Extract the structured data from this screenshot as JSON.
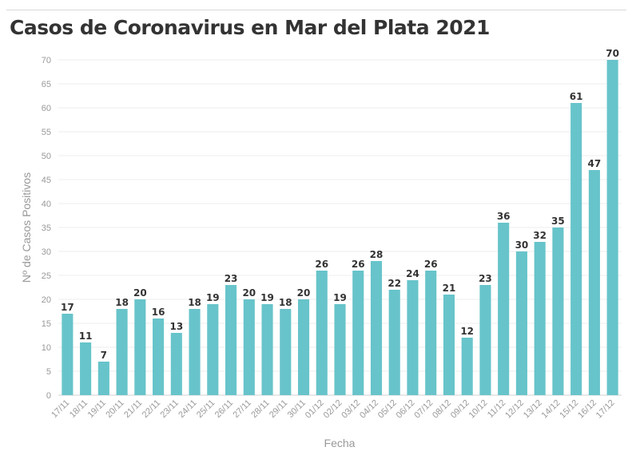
{
  "chart_data": {
    "type": "bar",
    "title": "Casos de Coronavirus en Mar del Plata 2021",
    "xlabel": "Fecha",
    "ylabel": "Nº de Casos Positivos",
    "ylim": [
      0,
      70
    ],
    "yticks": [
      0,
      5,
      10,
      15,
      20,
      25,
      30,
      35,
      40,
      45,
      50,
      55,
      60,
      65,
      70
    ],
    "grid": true,
    "bar_color": "#67c4ca",
    "categories": [
      "17/11",
      "18/11",
      "19/11",
      "20/11",
      "21/11",
      "22/11",
      "23/11",
      "24/11",
      "25/11",
      "26/11",
      "27/11",
      "28/11",
      "29/11",
      "30/11",
      "01/12",
      "02/12",
      "03/12",
      "04/12",
      "05/12",
      "06/12",
      "07/12",
      "08/12",
      "09/12",
      "10/12",
      "11/12",
      "12/12",
      "13/12",
      "14/12",
      "15/12",
      "16/12",
      "17/12"
    ],
    "values": [
      17,
      11,
      7,
      18,
      20,
      16,
      13,
      18,
      19,
      23,
      20,
      19,
      18,
      20,
      26,
      19,
      26,
      28,
      22,
      24,
      26,
      21,
      12,
      23,
      36,
      30,
      32,
      35,
      61,
      47,
      70
    ]
  }
}
